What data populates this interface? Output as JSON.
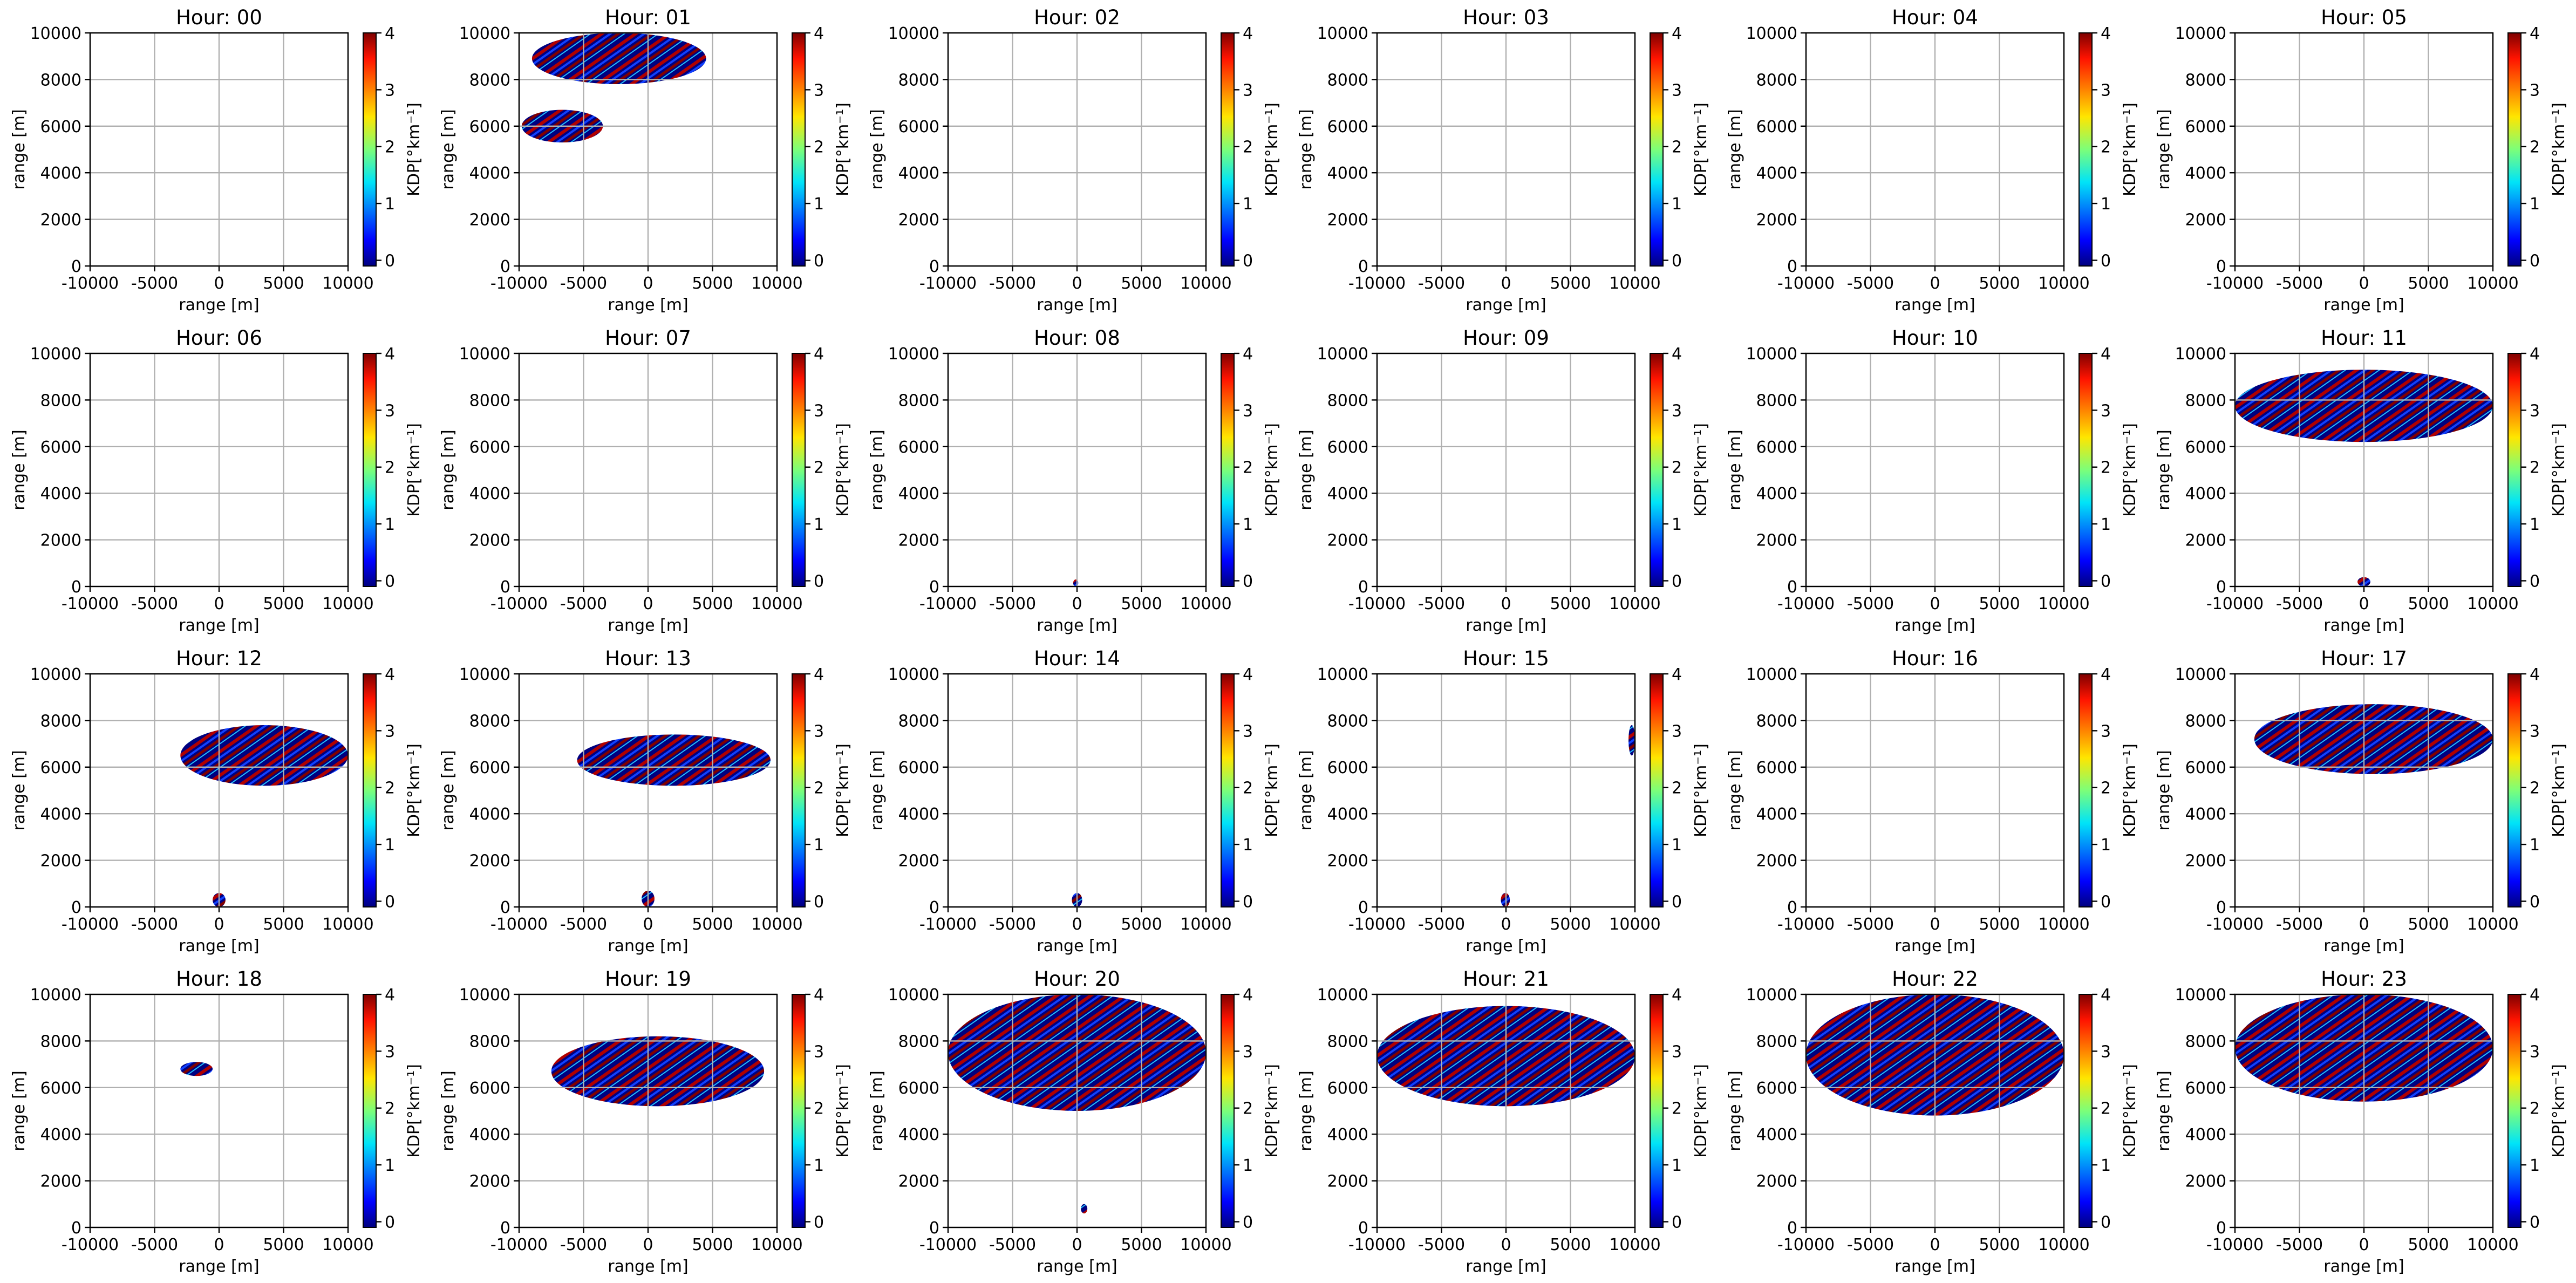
{
  "chart_data": [
    {
      "type": "pcolormesh",
      "title": "Hour: 00",
      "xlabel": "range [m]",
      "ylabel": "range [m]",
      "xlim": [
        -10000,
        10000
      ],
      "ylim": [
        0,
        10000
      ],
      "xticks": [
        -10000,
        -5000,
        0,
        5000,
        10000
      ],
      "yticks": [
        0,
        2000,
        4000,
        6000,
        8000,
        10000
      ],
      "grid": true,
      "colorbar_label": "KDP[°km⁻¹]",
      "clim": [
        -0.1,
        4
      ],
      "cticks": [
        0,
        1,
        2,
        3,
        4
      ],
      "regions": []
    },
    {
      "type": "pcolormesh",
      "title": "Hour: 01",
      "xlabel": "range [m]",
      "ylabel": "range [m]",
      "xlim": [
        -10000,
        10000
      ],
      "ylim": [
        0,
        10000
      ],
      "xticks": [
        -10000,
        -5000,
        0,
        5000,
        10000
      ],
      "yticks": [
        0,
        2000,
        4000,
        6000,
        8000,
        10000
      ],
      "grid": true,
      "colorbar_label": "KDP[°km⁻¹]",
      "clim": [
        -0.1,
        4
      ],
      "cticks": [
        0,
        1,
        2,
        3,
        4
      ],
      "regions": [
        [
          -9800,
          -3500,
          5300,
          6700
        ],
        [
          -9000,
          4500,
          7800,
          10000
        ]
      ]
    },
    {
      "type": "pcolormesh",
      "title": "Hour: 02",
      "xlabel": "range [m]",
      "ylabel": "range [m]",
      "xlim": [
        -10000,
        10000
      ],
      "ylim": [
        0,
        10000
      ],
      "xticks": [
        -10000,
        -5000,
        0,
        5000,
        10000
      ],
      "yticks": [
        0,
        2000,
        4000,
        6000,
        8000,
        10000
      ],
      "grid": true,
      "colorbar_label": "KDP[°km⁻¹]",
      "clim": [
        -0.1,
        4
      ],
      "cticks": [
        0,
        1,
        2,
        3,
        4
      ],
      "regions": []
    },
    {
      "type": "pcolormesh",
      "title": "Hour: 03",
      "xlabel": "range [m]",
      "ylabel": "range [m]",
      "xlim": [
        -10000,
        10000
      ],
      "ylim": [
        0,
        10000
      ],
      "xticks": [
        -10000,
        -5000,
        0,
        5000,
        10000
      ],
      "yticks": [
        0,
        2000,
        4000,
        6000,
        8000,
        10000
      ],
      "grid": true,
      "colorbar_label": "KDP[°km⁻¹]",
      "clim": [
        -0.1,
        4
      ],
      "cticks": [
        0,
        1,
        2,
        3,
        4
      ],
      "regions": []
    },
    {
      "type": "pcolormesh",
      "title": "Hour: 04",
      "xlabel": "range [m]",
      "ylabel": "range [m]",
      "xlim": [
        -10000,
        10000
      ],
      "ylim": [
        0,
        10000
      ],
      "xticks": [
        -10000,
        -5000,
        0,
        5000,
        10000
      ],
      "yticks": [
        0,
        2000,
        4000,
        6000,
        8000,
        10000
      ],
      "grid": true,
      "colorbar_label": "KDP[°km⁻¹]",
      "clim": [
        -0.1,
        4
      ],
      "cticks": [
        0,
        1,
        2,
        3,
        4
      ],
      "regions": []
    },
    {
      "type": "pcolormesh",
      "title": "Hour: 05",
      "xlabel": "range [m]",
      "ylabel": "range [m]",
      "xlim": [
        -10000,
        10000
      ],
      "ylim": [
        0,
        10000
      ],
      "xticks": [
        -10000,
        -5000,
        0,
        5000,
        10000
      ],
      "yticks": [
        0,
        2000,
        4000,
        6000,
        8000,
        10000
      ],
      "grid": true,
      "colorbar_label": "KDP[°km⁻¹]",
      "clim": [
        -0.1,
        4
      ],
      "cticks": [
        0,
        1,
        2,
        3,
        4
      ],
      "regions": []
    },
    {
      "type": "pcolormesh",
      "title": "Hour: 06",
      "xlabel": "range [m]",
      "ylabel": "range [m]",
      "xlim": [
        -10000,
        10000
      ],
      "ylim": [
        0,
        10000
      ],
      "xticks": [
        -10000,
        -5000,
        0,
        5000,
        10000
      ],
      "yticks": [
        0,
        2000,
        4000,
        6000,
        8000,
        10000
      ],
      "grid": true,
      "colorbar_label": "KDP[°km⁻¹]",
      "clim": [
        -0.1,
        4
      ],
      "cticks": [
        0,
        1,
        2,
        3,
        4
      ],
      "regions": []
    },
    {
      "type": "pcolormesh",
      "title": "Hour: 07",
      "xlabel": "range [m]",
      "ylabel": "range [m]",
      "xlim": [
        -10000,
        10000
      ],
      "ylim": [
        0,
        10000
      ],
      "xticks": [
        -10000,
        -5000,
        0,
        5000,
        10000
      ],
      "yticks": [
        0,
        2000,
        4000,
        6000,
        8000,
        10000
      ],
      "grid": true,
      "colorbar_label": "KDP[°km⁻¹]",
      "clim": [
        -0.1,
        4
      ],
      "cticks": [
        0,
        1,
        2,
        3,
        4
      ],
      "regions": []
    },
    {
      "type": "pcolormesh",
      "title": "Hour: 08",
      "xlabel": "range [m]",
      "ylabel": "range [m]",
      "xlim": [
        -10000,
        10000
      ],
      "ylim": [
        0,
        10000
      ],
      "xticks": [
        -10000,
        -5000,
        0,
        5000,
        10000
      ],
      "yticks": [
        0,
        2000,
        4000,
        6000,
        8000,
        10000
      ],
      "grid": true,
      "colorbar_label": "KDP[°km⁻¹]",
      "clim": [
        -0.1,
        4
      ],
      "cticks": [
        0,
        1,
        2,
        3,
        4
      ],
      "regions": [
        [
          -300,
          100,
          0,
          300
        ]
      ]
    },
    {
      "type": "pcolormesh",
      "title": "Hour: 09",
      "xlabel": "range [m]",
      "ylabel": "range [m]",
      "xlim": [
        -10000,
        10000
      ],
      "ylim": [
        0,
        10000
      ],
      "xticks": [
        -10000,
        -5000,
        0,
        5000,
        10000
      ],
      "yticks": [
        0,
        2000,
        4000,
        6000,
        8000,
        10000
      ],
      "grid": true,
      "colorbar_label": "KDP[°km⁻¹]",
      "clim": [
        -0.1,
        4
      ],
      "cticks": [
        0,
        1,
        2,
        3,
        4
      ],
      "regions": []
    },
    {
      "type": "pcolormesh",
      "title": "Hour: 10",
      "xlabel": "range [m]",
      "ylabel": "range [m]",
      "xlim": [
        -10000,
        10000
      ],
      "ylim": [
        0,
        10000
      ],
      "xticks": [
        -10000,
        -5000,
        0,
        5000,
        10000
      ],
      "yticks": [
        0,
        2000,
        4000,
        6000,
        8000,
        10000
      ],
      "grid": true,
      "colorbar_label": "KDP[°km⁻¹]",
      "clim": [
        -0.1,
        4
      ],
      "cticks": [
        0,
        1,
        2,
        3,
        4
      ],
      "regions": []
    },
    {
      "type": "pcolormesh",
      "title": "Hour: 11",
      "xlabel": "range [m]",
      "ylabel": "range [m]",
      "xlim": [
        -10000,
        10000
      ],
      "ylim": [
        0,
        10000
      ],
      "xticks": [
        -10000,
        -5000,
        0,
        5000,
        10000
      ],
      "yticks": [
        0,
        2000,
        4000,
        6000,
        8000,
        10000
      ],
      "grid": true,
      "colorbar_label": "KDP[°km⁻¹]",
      "clim": [
        -0.1,
        4
      ],
      "cticks": [
        0,
        1,
        2,
        3,
        4
      ],
      "regions": [
        [
          -10000,
          10000,
          6200,
          9300
        ],
        [
          -500,
          500,
          0,
          400
        ]
      ]
    },
    {
      "type": "pcolormesh",
      "title": "Hour: 12",
      "xlabel": "range [m]",
      "ylabel": "range [m]",
      "xlim": [
        -10000,
        10000
      ],
      "ylim": [
        0,
        10000
      ],
      "xticks": [
        -10000,
        -5000,
        0,
        5000,
        10000
      ],
      "yticks": [
        0,
        2000,
        4000,
        6000,
        8000,
        10000
      ],
      "grid": true,
      "colorbar_label": "KDP[°km⁻¹]",
      "clim": [
        -0.1,
        4
      ],
      "cticks": [
        0,
        1,
        2,
        3,
        4
      ],
      "regions": [
        [
          -3000,
          10000,
          5200,
          7800
        ],
        [
          -500,
          500,
          0,
          600
        ]
      ]
    },
    {
      "type": "pcolormesh",
      "title": "Hour: 13",
      "xlabel": "range [m]",
      "ylabel": "range [m]",
      "xlim": [
        -10000,
        10000
      ],
      "ylim": [
        0,
        10000
      ],
      "xticks": [
        -10000,
        -5000,
        0,
        5000,
        10000
      ],
      "yticks": [
        0,
        2000,
        4000,
        6000,
        8000,
        10000
      ],
      "grid": true,
      "colorbar_label": "KDP[°km⁻¹]",
      "clim": [
        -0.1,
        4
      ],
      "cticks": [
        0,
        1,
        2,
        3,
        4
      ],
      "regions": [
        [
          -5500,
          9500,
          5200,
          7400
        ],
        [
          -500,
          500,
          0,
          700
        ]
      ]
    },
    {
      "type": "pcolormesh",
      "title": "Hour: 14",
      "xlabel": "range [m]",
      "ylabel": "range [m]",
      "xlim": [
        -10000,
        10000
      ],
      "ylim": [
        0,
        10000
      ],
      "xticks": [
        -10000,
        -5000,
        0,
        5000,
        10000
      ],
      "yticks": [
        0,
        2000,
        4000,
        6000,
        8000,
        10000
      ],
      "grid": true,
      "colorbar_label": "KDP[°km⁻¹]",
      "clim": [
        -0.1,
        4
      ],
      "cticks": [
        0,
        1,
        2,
        3,
        4
      ],
      "regions": [
        [
          -400,
          400,
          0,
          600
        ]
      ]
    },
    {
      "type": "pcolormesh",
      "title": "Hour: 15",
      "xlabel": "range [m]",
      "ylabel": "range [m]",
      "xlim": [
        -10000,
        10000
      ],
      "ylim": [
        0,
        10000
      ],
      "xticks": [
        -10000,
        -5000,
        0,
        5000,
        10000
      ],
      "yticks": [
        0,
        2000,
        4000,
        6000,
        8000,
        10000
      ],
      "grid": true,
      "colorbar_label": "KDP[°km⁻¹]",
      "clim": [
        -0.1,
        4
      ],
      "cticks": [
        0,
        1,
        2,
        3,
        4
      ],
      "regions": [
        [
          9500,
          10000,
          6500,
          7800
        ],
        [
          -400,
          300,
          0,
          600
        ]
      ]
    },
    {
      "type": "pcolormesh",
      "title": "Hour: 16",
      "xlabel": "range [m]",
      "ylabel": "range [m]",
      "xlim": [
        -10000,
        10000
      ],
      "ylim": [
        0,
        10000
      ],
      "xticks": [
        -10000,
        -5000,
        0,
        5000,
        10000
      ],
      "yticks": [
        0,
        2000,
        4000,
        6000,
        8000,
        10000
      ],
      "grid": true,
      "colorbar_label": "KDP[°km⁻¹]",
      "clim": [
        -0.1,
        4
      ],
      "cticks": [
        0,
        1,
        2,
        3,
        4
      ],
      "regions": []
    },
    {
      "type": "pcolormesh",
      "title": "Hour: 17",
      "xlabel": "range [m]",
      "ylabel": "range [m]",
      "xlim": [
        -10000,
        10000
      ],
      "ylim": [
        0,
        10000
      ],
      "xticks": [
        -10000,
        -5000,
        0,
        5000,
        10000
      ],
      "yticks": [
        0,
        2000,
        4000,
        6000,
        8000,
        10000
      ],
      "grid": true,
      "colorbar_label": "KDP[°km⁻¹]",
      "clim": [
        -0.1,
        4
      ],
      "cticks": [
        0,
        1,
        2,
        3,
        4
      ],
      "regions": [
        [
          -8500,
          10000,
          5700,
          8700
        ]
      ]
    },
    {
      "type": "pcolormesh",
      "title": "Hour: 18",
      "xlabel": "range [m]",
      "ylabel": "range [m]",
      "xlim": [
        -10000,
        10000
      ],
      "ylim": [
        0,
        10000
      ],
      "xticks": [
        -10000,
        -5000,
        0,
        5000,
        10000
      ],
      "yticks": [
        0,
        2000,
        4000,
        6000,
        8000,
        10000
      ],
      "grid": true,
      "colorbar_label": "KDP[°km⁻¹]",
      "clim": [
        -0.1,
        4
      ],
      "cticks": [
        0,
        1,
        2,
        3,
        4
      ],
      "regions": [
        [
          -3000,
          -500,
          6500,
          7100
        ]
      ]
    },
    {
      "type": "pcolormesh",
      "title": "Hour: 19",
      "xlabel": "range [m]",
      "ylabel": "range [m]",
      "xlim": [
        -10000,
        10000
      ],
      "ylim": [
        0,
        10000
      ],
      "xticks": [
        -10000,
        -5000,
        0,
        5000,
        10000
      ],
      "yticks": [
        0,
        2000,
        4000,
        6000,
        8000,
        10000
      ],
      "grid": true,
      "colorbar_label": "KDP[°km⁻¹]",
      "clim": [
        -0.1,
        4
      ],
      "cticks": [
        0,
        1,
        2,
        3,
        4
      ],
      "regions": [
        [
          -7500,
          9000,
          5200,
          8200
        ]
      ]
    },
    {
      "type": "pcolormesh",
      "title": "Hour: 20",
      "xlabel": "range [m]",
      "ylabel": "range [m]",
      "xlim": [
        -10000,
        10000
      ],
      "ylim": [
        0,
        10000
      ],
      "xticks": [
        -10000,
        -5000,
        0,
        5000,
        10000
      ],
      "yticks": [
        0,
        2000,
        4000,
        6000,
        8000,
        10000
      ],
      "grid": true,
      "colorbar_label": "KDP[°km⁻¹]",
      "clim": [
        -0.1,
        4
      ],
      "cticks": [
        0,
        1,
        2,
        3,
        4
      ],
      "regions": [
        [
          -10000,
          10000,
          5000,
          10000
        ],
        [
          300,
          800,
          600,
          1000
        ]
      ]
    },
    {
      "type": "pcolormesh",
      "title": "Hour: 21",
      "xlabel": "range [m]",
      "ylabel": "range [m]",
      "xlim": [
        -10000,
        10000
      ],
      "ylim": [
        0,
        10000
      ],
      "xticks": [
        -10000,
        -5000,
        0,
        5000,
        10000
      ],
      "yticks": [
        0,
        2000,
        4000,
        6000,
        8000,
        10000
      ],
      "grid": true,
      "colorbar_label": "KDP[°km⁻¹]",
      "clim": [
        -0.1,
        4
      ],
      "cticks": [
        0,
        1,
        2,
        3,
        4
      ],
      "regions": [
        [
          -10000,
          10000,
          5200,
          9500
        ]
      ]
    },
    {
      "type": "pcolormesh",
      "title": "Hour: 22",
      "xlabel": "range [m]",
      "ylabel": "range [m]",
      "xlim": [
        -10000,
        10000
      ],
      "ylim": [
        0,
        10000
      ],
      "xticks": [
        -10000,
        -5000,
        0,
        5000,
        10000
      ],
      "yticks": [
        0,
        2000,
        4000,
        6000,
        8000,
        10000
      ],
      "grid": true,
      "colorbar_label": "KDP[°km⁻¹]",
      "clim": [
        -0.1,
        4
      ],
      "cticks": [
        0,
        1,
        2,
        3,
        4
      ],
      "regions": [
        [
          -10000,
          10000,
          4800,
          10000
        ]
      ]
    },
    {
      "type": "pcolormesh",
      "title": "Hour: 23",
      "xlabel": "range [m]",
      "ylabel": "range [m]",
      "xlim": [
        -10000,
        10000
      ],
      "ylim": [
        0,
        10000
      ],
      "xticks": [
        -10000,
        -5000,
        0,
        5000,
        10000
      ],
      "yticks": [
        0,
        2000,
        4000,
        6000,
        8000,
        10000
      ],
      "grid": true,
      "colorbar_label": "KDP[°km⁻¹]",
      "clim": [
        -0.1,
        4
      ],
      "cticks": [
        0,
        1,
        2,
        3,
        4
      ],
      "regions": [
        [
          -10000,
          10000,
          5400,
          10000
        ]
      ]
    }
  ]
}
